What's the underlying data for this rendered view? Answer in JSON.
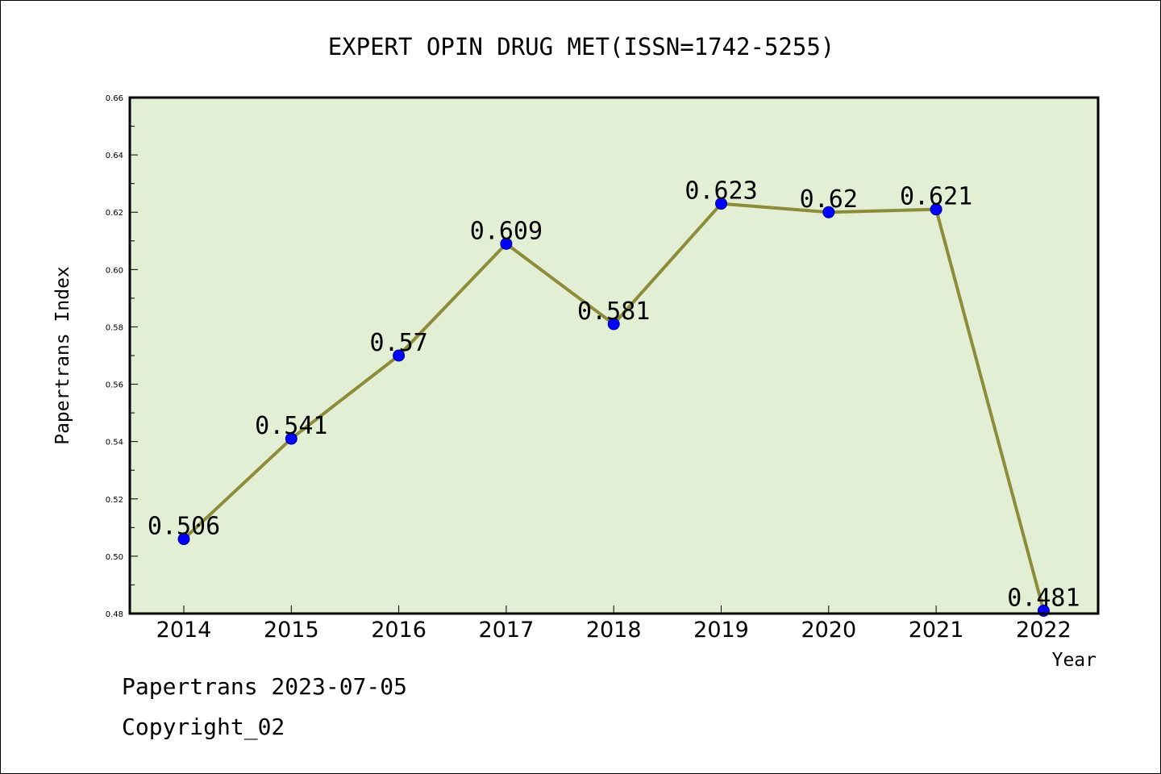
{
  "chart_data": {
    "type": "line",
    "title": "EXPERT OPIN DRUG MET(ISSN=1742-5255)",
    "xlabel": "Year",
    "ylabel": "Papertrans Index",
    "categories": [
      "2014",
      "2015",
      "2016",
      "2017",
      "2018",
      "2019",
      "2020",
      "2021",
      "2022"
    ],
    "series": [
      {
        "values": [
          0.506,
          0.541,
          0.57,
          0.609,
          0.581,
          0.623,
          0.62,
          0.621,
          0.481
        ],
        "data_labels": [
          "0.506",
          "0.541",
          "0.57",
          "0.609",
          "0.581",
          "0.623",
          "0.62",
          "0.621",
          "0.481"
        ]
      }
    ],
    "yticks": [
      "0.48",
      "0.50",
      "0.52",
      "0.54",
      "0.56",
      "0.58",
      "0.60",
      "0.62",
      "0.64",
      "0.66"
    ],
    "ylim": [
      0.48,
      0.66
    ],
    "grid": false,
    "legend": "none",
    "colors": {
      "plot_background": "#e2efd4",
      "line": "#8c8c3a",
      "marker": "#0000ff"
    }
  },
  "footer": {
    "line1": "Papertrans 2023-07-05",
    "line2": "Copyright_02"
  }
}
